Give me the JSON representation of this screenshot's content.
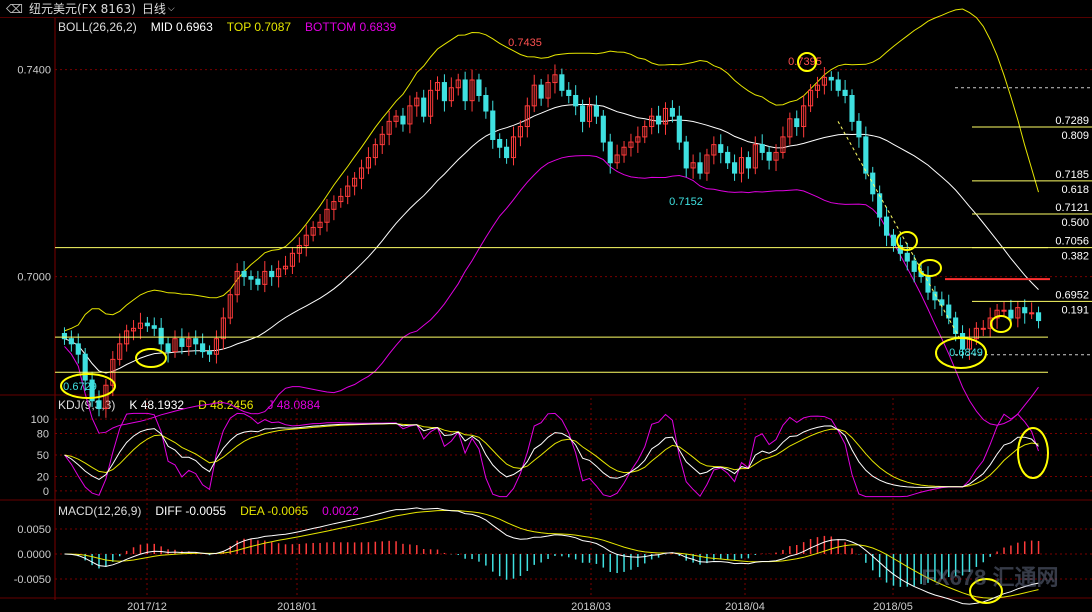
{
  "header": {
    "back_icon": "back-arrow-icon",
    "instrument": "纽元美元(FX 8163)",
    "period": "日线",
    "period_dropdown_icon": "chevron-down-icon"
  },
  "colors": {
    "background": "#000000",
    "grid": "#7a0000",
    "up_candle": "#ff3b3b",
    "down_candle": "#3fe0e0",
    "boll_mid": "#ffffff",
    "boll_top": "#e6e600",
    "boll_bottom": "#e000e0",
    "k_line": "#ffffff",
    "d_line": "#e6e600",
    "j_line": "#e000e0",
    "highlight_ellipse": "#ffff00",
    "fib_line": "#ffff66",
    "resistance_line": "#ff3030"
  },
  "indicators": {
    "boll": {
      "label": "BOLL(26,26,2)",
      "mid": "MID 0.6963",
      "top": "TOP 0.7087",
      "bottom": "BOTTOM 0.6839"
    },
    "kdj": {
      "label": "KDJ(9,3,3)",
      "k": "K 48.1932",
      "d": "D 48.2456",
      "j": "J 48.0884"
    },
    "macd": {
      "label": "MACD(12,26,9)",
      "diff": "DIFF -0.0055",
      "dea": "DEA -0.0065",
      "macd": "0.0022"
    }
  },
  "chart_data": [
    {
      "type": "candlestick",
      "panel": "price",
      "y_ticks": [
        "0.7400",
        "0.7000"
      ],
      "ylim": [
        0.6775,
        0.7465
      ],
      "x_ticks": [
        "2017/12",
        "2018/01",
        "2018/03",
        "2018/04",
        "2018/05"
      ],
      "annotations": [
        "0.7435",
        "0.7395",
        "0.7152",
        "0.6849",
        "0.6729"
      ],
      "fib_levels": [
        {
          "price": "0.7289",
          "ratio": "0.809"
        },
        {
          "price": "0.7185",
          "ratio": "0.618"
        },
        {
          "price": "0.7121",
          "ratio": "0.500"
        },
        {
          "price": "0.7056",
          "ratio": "0.382"
        },
        {
          "price": "0.6952",
          "ratio": "0.191"
        }
      ],
      "horizontal_lines": [
        0.7056,
        0.6883,
        0.6815
      ],
      "resistance": 0.6995,
      "close": [
        0.688,
        0.687,
        0.685,
        0.68,
        0.676,
        0.6745,
        0.679,
        0.684,
        0.687,
        0.6895,
        0.69,
        0.691,
        0.6905,
        0.69,
        0.687,
        0.6855,
        0.688,
        0.6865,
        0.688,
        0.687,
        0.6855,
        0.685,
        0.688,
        0.692,
        0.6965,
        0.701,
        0.7,
        0.6995,
        0.6985,
        0.701,
        0.7,
        0.7015,
        0.702,
        0.7045,
        0.706,
        0.708,
        0.7095,
        0.7105,
        0.713,
        0.7145,
        0.7155,
        0.7175,
        0.719,
        0.721,
        0.723,
        0.7255,
        0.7275,
        0.73,
        0.731,
        0.7295,
        0.733,
        0.7345,
        0.731,
        0.736,
        0.7375,
        0.734,
        0.7365,
        0.738,
        0.734,
        0.738,
        0.735,
        0.732,
        0.7265,
        0.725,
        0.723,
        0.727,
        0.729,
        0.733,
        0.737,
        0.7345,
        0.7375,
        0.739,
        0.736,
        0.735,
        0.733,
        0.73,
        0.733,
        0.731,
        0.726,
        0.722,
        0.7235,
        0.725,
        0.726,
        0.727,
        0.729,
        0.731,
        0.7295,
        0.7325,
        0.731,
        0.726,
        0.721,
        0.722,
        0.72,
        0.7235,
        0.7255,
        0.724,
        0.722,
        0.72,
        0.723,
        0.721,
        0.7255,
        0.724,
        0.7225,
        0.724,
        0.727,
        0.7305,
        0.729,
        0.733,
        0.736,
        0.737,
        0.7385,
        0.738,
        0.736,
        0.735,
        0.73,
        0.727,
        0.72,
        0.716,
        0.7115,
        0.708,
        0.706,
        0.7045,
        0.703,
        0.701,
        0.7,
        0.697,
        0.6955,
        0.6945,
        0.692,
        0.689,
        0.686,
        0.688,
        0.69,
        0.69,
        0.692,
        0.6935,
        0.6935,
        0.692,
        0.694,
        0.693,
        0.693,
        0.6915
      ]
    },
    {
      "type": "line",
      "panel": "kdj",
      "y_ticks": [
        "100",
        "80",
        "50",
        "20",
        "0"
      ],
      "ylim": [
        -10,
        110
      ],
      "series_names": [
        "K",
        "D",
        "J"
      ],
      "last_values": [
        48.1932,
        48.2456,
        48.0884
      ]
    },
    {
      "type": "bar+line",
      "panel": "macd",
      "y_ticks": [
        "0.0050",
        "0.0000",
        "-0.0050"
      ],
      "ylim": [
        -0.0072,
        0.0072
      ],
      "series_names": [
        "DIFF",
        "DEA",
        "MACD"
      ],
      "last_values": [
        -0.0055,
        -0.0065,
        0.0022
      ]
    }
  ],
  "watermark": "FX678 汇通网"
}
